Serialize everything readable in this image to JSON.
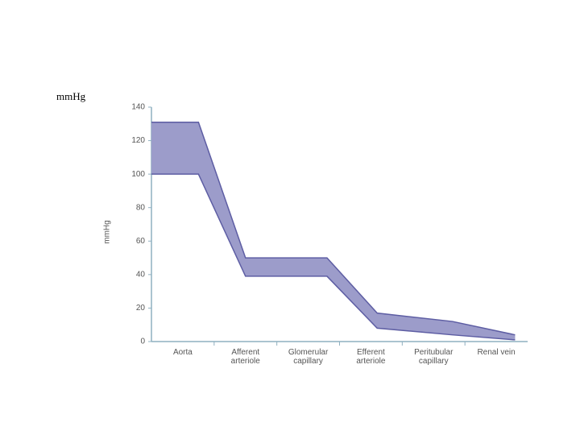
{
  "caption": "mmHg",
  "chart_data": {
    "type": "range-area",
    "y_label": "mmHg",
    "categories": [
      "Aorta",
      "Afferent arteriole",
      "Glomerular capillary",
      "Efferent arteriole",
      "Peritubular capillary",
      "Renal vein"
    ],
    "x": [
      0,
      0.75,
      1.5,
      2.8,
      3.6,
      4.8,
      5.8
    ],
    "high": [
      131,
      131,
      50,
      50,
      17,
      12,
      4
    ],
    "low": [
      100,
      100,
      39,
      39,
      8,
      4,
      1
    ],
    "xlim": [
      0,
      6
    ],
    "ylim": [
      0,
      140
    ],
    "yticks": [
      0,
      20,
      40,
      60,
      80,
      100,
      120,
      140
    ],
    "color": "#9c9cca",
    "line_color": "#5d5da3",
    "axis_color": "#8fb0c0"
  }
}
